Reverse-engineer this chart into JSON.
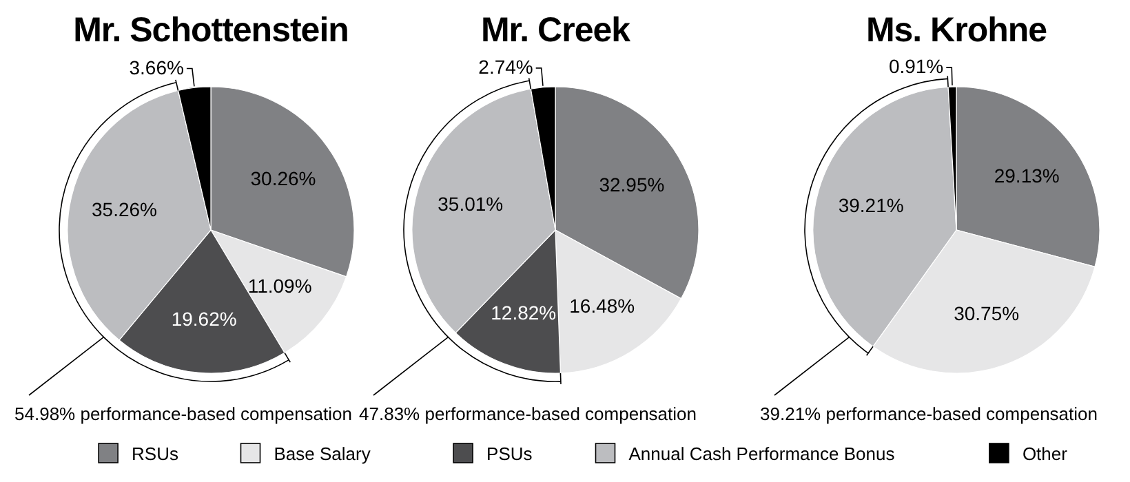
{
  "chart_data": [
    {
      "type": "pie",
      "title": "Mr. Schottenstein",
      "categories": [
        "RSUs",
        "Base Salary",
        "PSUs",
        "Annual Cash Performance Bonus",
        "Other"
      ],
      "values": [
        30.26,
        11.09,
        19.62,
        35.26,
        3.66
      ],
      "colors": [
        "#808184",
        "#e6e6e7",
        "#4d4d4f",
        "#bcbdc0",
        "#000000"
      ],
      "value_labels": [
        "30.26%",
        "11.09%",
        "19.62%",
        "35.26%",
        "3.66%"
      ],
      "annotations": [
        "54.98% performance-based compensation"
      ],
      "legend": "bottom"
    },
    {
      "type": "pie",
      "title": "Mr. Creek",
      "categories": [
        null,
        null,
        null,
        null,
        null
      ],
      "values": [
        32.95,
        16.48,
        12.82,
        35.01,
        2.74
      ],
      "colors": [
        "#808184",
        "#e6e6e7",
        "#4d4d4f",
        "#bcbdc0",
        "#000000"
      ],
      "value_labels": [
        "32.95%",
        "16.48%",
        "12.82%",
        "35.01%",
        "2.74%"
      ],
      "annotations": [
        "47.83% performance-based compensation"
      ]
    },
    {
      "type": "pie",
      "title": "Ms. Krohne",
      "categories": [
        null,
        null,
        null,
        null,
        null
      ],
      "values": [
        29.13,
        30.75,
        0,
        39.21,
        0.91
      ],
      "colors": [
        "#808184",
        "#e6e6e7",
        "#4d4d4f",
        "#bcbdc0",
        "#000000"
      ],
      "value_labels": [
        "29.13%",
        "30.75%",
        null,
        "39.21%",
        "0.91%"
      ],
      "annotations": [
        "39.21% performance-based compensation"
      ]
    }
  ]
}
